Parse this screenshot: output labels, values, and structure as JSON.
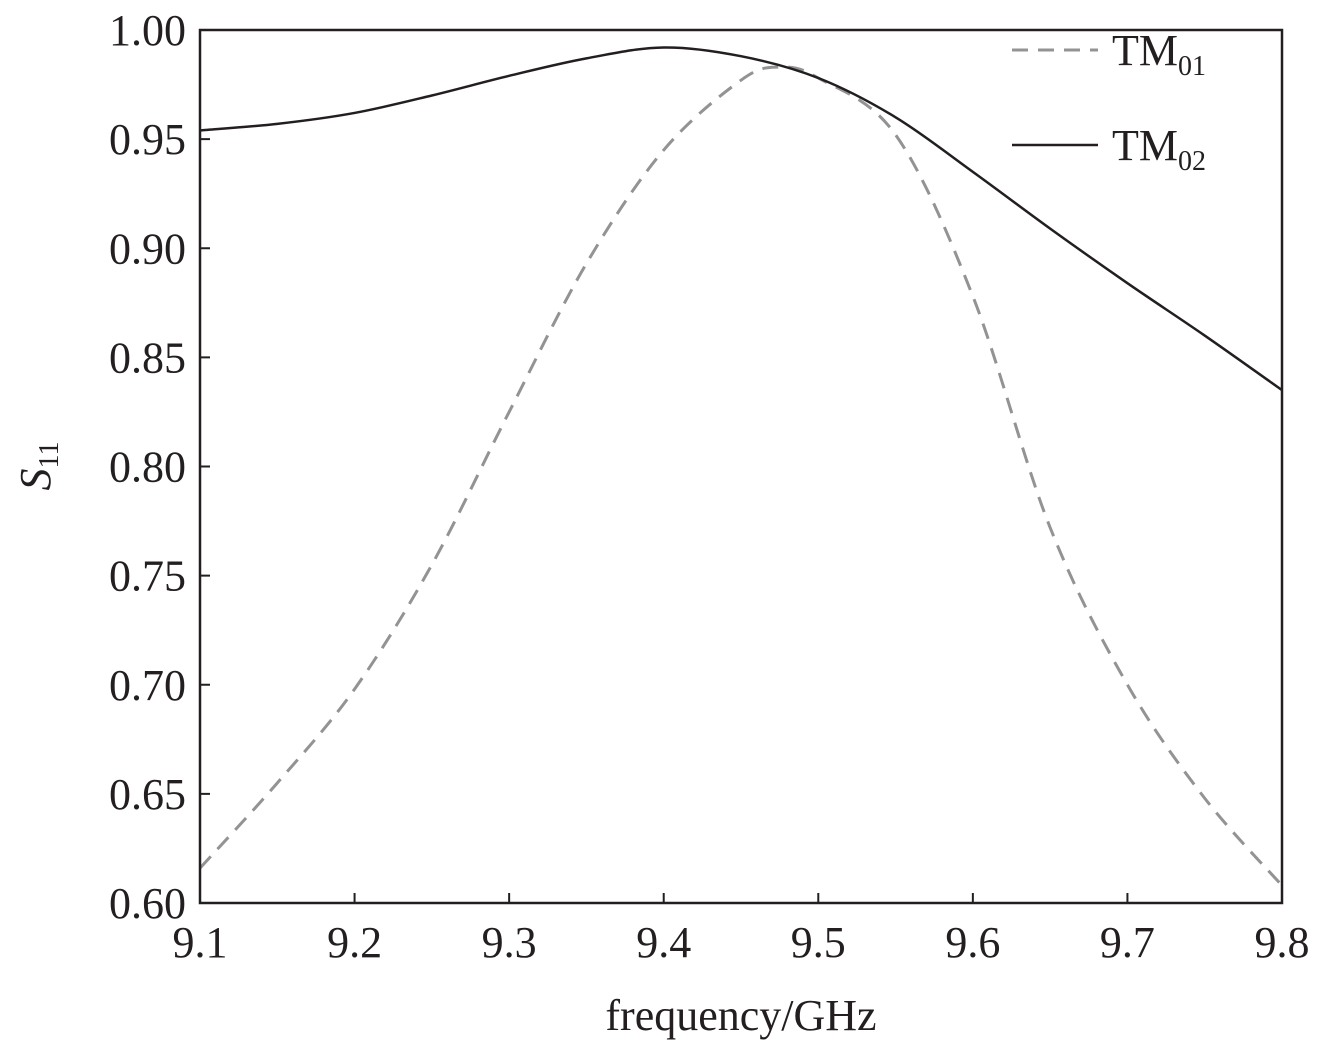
{
  "chart_data": {
    "type": "line",
    "title": "",
    "xlabel": "frequency/GHz",
    "ylabel": {
      "main": "S",
      "sub": "11"
    },
    "xlim": [
      9.1,
      9.8
    ],
    "ylim": [
      0.6,
      1.0
    ],
    "xticks": [
      "9.1",
      "9.2",
      "9.3",
      "9.4",
      "9.5",
      "9.6",
      "9.7",
      "9.8"
    ],
    "yticks": [
      "0.60",
      "0.65",
      "0.70",
      "0.75",
      "0.80",
      "0.85",
      "0.90",
      "0.95",
      "1.00"
    ],
    "grid": false,
    "legend_position": "top-right",
    "series": [
      {
        "name": "TM01",
        "label_main": "TM",
        "label_sub": "01",
        "style": "dashed",
        "color": "#939393",
        "x": [
          9.1,
          9.15,
          9.2,
          9.25,
          9.3,
          9.35,
          9.4,
          9.45,
          9.475,
          9.5,
          9.55,
          9.6,
          9.65,
          9.7,
          9.75,
          9.8
        ],
        "y": [
          0.616,
          0.655,
          0.698,
          0.755,
          0.825,
          0.893,
          0.945,
          0.977,
          0.983,
          0.978,
          0.952,
          0.878,
          0.772,
          0.7,
          0.648,
          0.608
        ]
      },
      {
        "name": "TM02",
        "label_main": "TM",
        "label_sub": "02",
        "style": "solid",
        "color": "#231f20",
        "x": [
          9.1,
          9.15,
          9.2,
          9.25,
          9.3,
          9.35,
          9.4,
          9.45,
          9.5,
          9.55,
          9.6,
          9.65,
          9.7,
          9.75,
          9.8
        ],
        "y": [
          0.954,
          0.957,
          0.962,
          0.97,
          0.979,
          0.987,
          0.992,
          0.988,
          0.978,
          0.96,
          0.935,
          0.909,
          0.884,
          0.86,
          0.835
        ]
      }
    ]
  }
}
